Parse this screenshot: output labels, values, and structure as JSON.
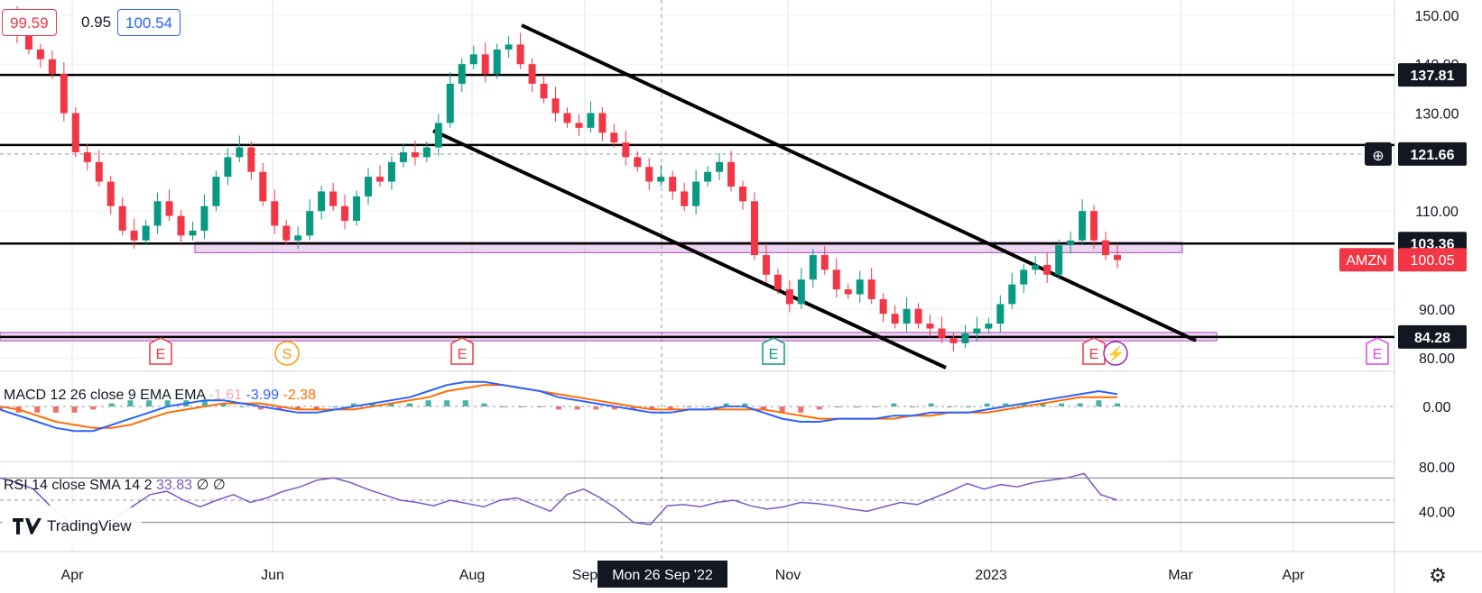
{
  "chart_data": {
    "type": "candlestick",
    "symbol": "AMZN",
    "last_price": 100.05,
    "header_values": [
      "99.59",
      "0.95",
      "100.54"
    ],
    "price_axis": {
      "ticks": [
        150,
        140,
        130,
        110,
        90,
        80
      ],
      "ylim": [
        78,
        152
      ]
    },
    "x_ticks": [
      "Apr",
      "Jun",
      "Aug",
      "Sep",
      "Nov",
      "2023",
      "Mar",
      "Apr"
    ],
    "crosshair": {
      "x_label": "Mon 26 Sep '22",
      "y_label": "121.66"
    },
    "horizontal_levels": [
      {
        "label": "137.81",
        "value": 137.81
      },
      {
        "label": "121.66",
        "value": 121.66
      },
      {
        "label": "103.36",
        "value": 103.36
      },
      {
        "label": "84.28",
        "value": 84.28
      }
    ],
    "support_zones": [
      {
        "from": 101.5,
        "to": 103.6
      },
      {
        "from": 83.5,
        "to": 85.2
      }
    ],
    "closes": [
      150,
      146,
      143,
      141,
      138,
      130,
      122,
      120,
      116,
      111,
      106,
      104,
      107,
      112,
      109,
      105,
      106,
      111,
      117,
      121,
      123,
      118,
      112,
      107,
      104,
      105,
      110,
      114,
      111,
      108,
      113,
      117,
      116,
      120,
      122,
      121,
      123,
      128,
      136,
      140,
      142,
      138,
      143,
      144,
      140,
      136,
      133,
      130,
      128,
      127,
      130,
      126,
      124,
      121,
      119,
      116,
      117,
      114,
      111,
      116,
      118,
      120,
      115,
      112,
      101,
      97,
      94,
      91,
      96,
      101,
      98,
      94,
      93,
      96,
      92,
      89,
      87,
      90,
      87,
      86,
      84,
      83,
      85,
      86,
      87,
      91,
      95,
      98,
      99,
      97,
      103,
      104,
      110,
      104,
      101,
      100
    ],
    "earnings_markers": [
      {
        "label": "E",
        "color": "#f23645"
      },
      {
        "label": "S",
        "color": "#ff9800"
      },
      {
        "label": "E",
        "color": "#f23645"
      },
      {
        "label": "E",
        "color": "#089981"
      },
      {
        "label": "E",
        "color": "#f23645"
      },
      {
        "label": "E",
        "color": "#e040fb"
      }
    ],
    "macd": {
      "label": "MACD 12 26 close 9 EMA EMA",
      "values": [
        "-1.61",
        "-3.99",
        "-2.38"
      ],
      "zero_label": "0.00",
      "macd_line": [
        -1,
        -3,
        -5,
        -7,
        -8,
        -8,
        -6,
        -4,
        -2,
        0,
        1,
        2,
        2,
        1,
        0,
        -1,
        -2,
        -2,
        -1,
        0,
        1,
        2,
        3,
        5,
        7,
        8,
        8,
        7,
        6,
        5,
        3,
        2,
        1,
        0,
        -1,
        -2,
        -2,
        -1,
        -1,
        0,
        0,
        -2,
        -4,
        -5,
        -5,
        -4,
        -4,
        -4,
        -3,
        -3,
        -2,
        -2,
        -2,
        -1,
        0,
        1,
        2,
        3,
        4,
        5,
        4
      ],
      "signal_line": [
        0,
        -1,
        -3,
        -5,
        -6,
        -7,
        -7,
        -6,
        -4,
        -2,
        -1,
        0,
        1,
        1,
        1,
        0,
        -1,
        -1,
        -1,
        -1,
        0,
        1,
        2,
        3,
        5,
        6,
        7,
        7,
        6,
        5,
        4,
        3,
        2,
        1,
        0,
        -1,
        -1,
        -1,
        -1,
        -1,
        -1,
        -1,
        -2,
        -3,
        -4,
        -4,
        -4,
        -4,
        -4,
        -3,
        -3,
        -2,
        -2,
        -2,
        -1,
        0,
        1,
        2,
        3,
        3,
        3
      ]
    },
    "rsi": {
      "label": "RSI 14 close SMA 14 2",
      "values": [
        "33.83",
        "∅",
        "∅"
      ],
      "ticks": [
        "80.00",
        "40.00"
      ],
      "bands": [
        70,
        30
      ],
      "values_series": [
        70,
        66,
        60,
        45,
        32,
        28,
        27,
        35,
        45,
        55,
        58,
        50,
        44,
        50,
        55,
        48,
        52,
        58,
        62,
        68,
        70,
        66,
        60,
        55,
        50,
        48,
        45,
        50,
        47,
        44,
        50,
        52,
        46,
        40,
        55,
        60,
        52,
        42,
        30,
        28,
        45,
        46,
        44,
        48,
        50,
        45,
        42,
        44,
        48,
        47,
        45,
        42,
        40,
        44,
        48,
        46,
        52,
        58,
        65,
        60,
        64,
        62,
        66,
        68,
        70,
        74,
        55,
        50
      ]
    }
  },
  "watermark": "TradingView",
  "settings_icon": "gear-icon"
}
